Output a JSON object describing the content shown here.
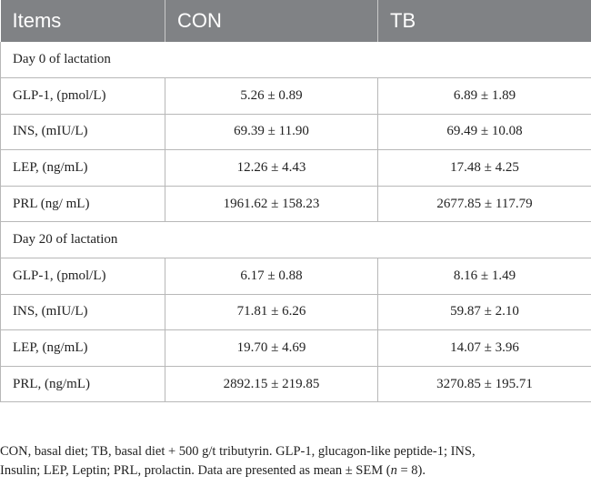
{
  "table": {
    "headers": [
      "Items",
      "CON",
      "TB"
    ],
    "sections": [
      {
        "title": "Day 0 of lactation",
        "rows": [
          {
            "item": "GLP-1, (pmol/L)",
            "con": "5.26 ± 0.89",
            "tb": "6.89 ± 1.89"
          },
          {
            "item": "INS, (mIU/L)",
            "con": "69.39 ± 11.90",
            "tb": "69.49 ± 10.08"
          },
          {
            "item": "LEP, (ng/mL)",
            "con": "12.26 ± 4.43",
            "tb": "17.48 ± 4.25"
          },
          {
            "item": "PRL (ng/ mL)",
            "con": "1961.62 ± 158.23",
            "tb": "2677.85 ± 117.79"
          }
        ]
      },
      {
        "title": "Day 20 of lactation",
        "rows": [
          {
            "item": "GLP-1, (pmol/L)",
            "con": "6.17 ± 0.88",
            "tb": "8.16 ± 1.49"
          },
          {
            "item": "INS, (mIU/L)",
            "con": "71.81 ± 6.26",
            "tb": "59.87 ± 2.10"
          },
          {
            "item": "LEP, (ng/mL)",
            "con": "19.70 ± 4.69",
            "tb": "14.07 ± 3.96"
          },
          {
            "item": "PRL, (ng/mL)",
            "con": "2892.15 ± 219.85",
            "tb": "3270.85 ± 195.71"
          }
        ]
      }
    ]
  },
  "footnote": {
    "line1": "CON, basal diet; TB, basal diet + 500 g/t tributyrin. GLP-1, glucagon-like peptide-1; INS,",
    "line2_before": "Insulin; LEP, Leptin; PRL, prolactin. Data are presented as mean ± SEM (",
    "line2_n": "n",
    "line2_after": " = 8)."
  }
}
